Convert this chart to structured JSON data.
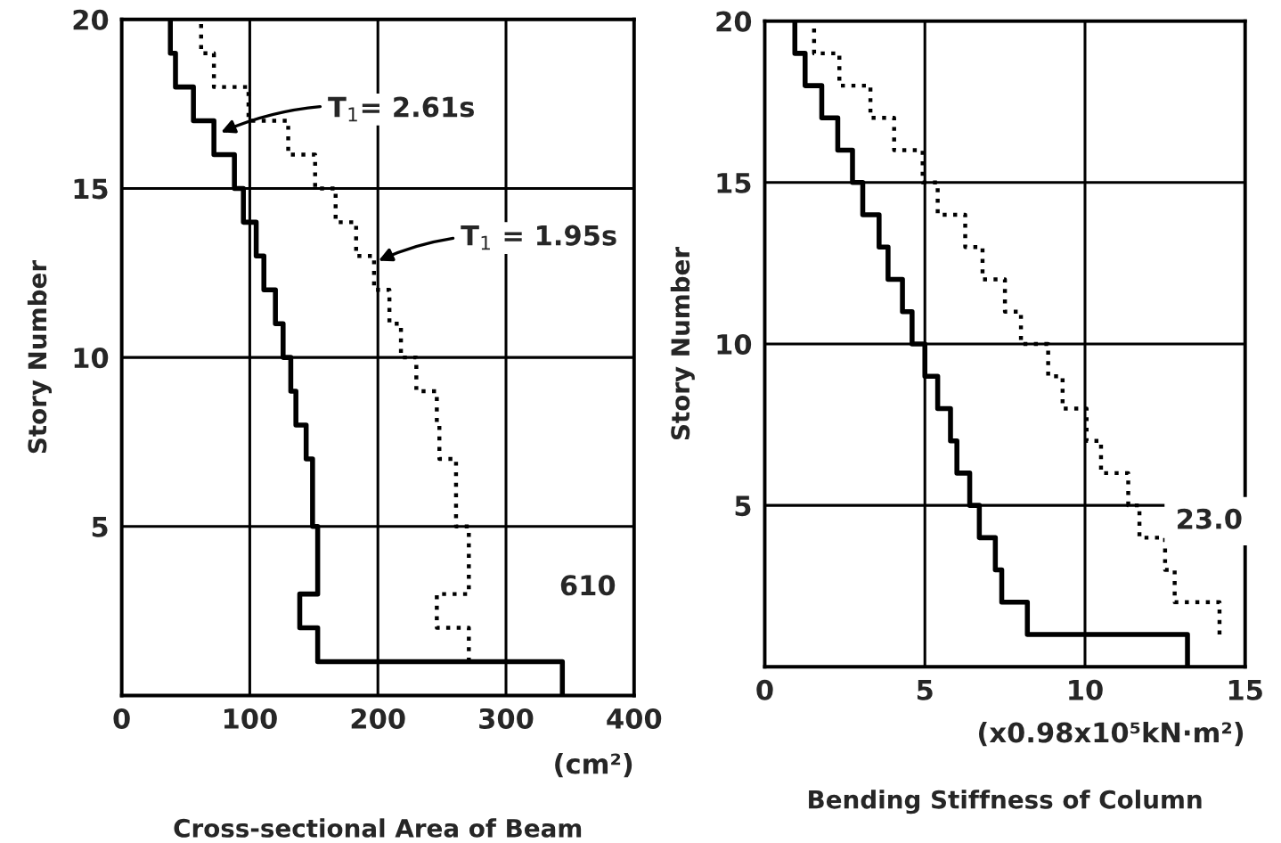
{
  "chart_data": [
    {
      "type": "step",
      "orientation": "horizontal",
      "ylabel": "Story Number",
      "xlabel": "Cross-sectional Area of Beam",
      "x": [
        0,
        1,
        2,
        3,
        4,
        5,
        6,
        7,
        8,
        9,
        10,
        11,
        12,
        13,
        14,
        15,
        16,
        17,
        18,
        19,
        20
      ],
      "series": [
        {
          "color": "#000000",
          "line_style": "solid",
          "values": [
            344,
            153,
            139,
            153,
            153,
            149,
            149,
            144,
            136,
            132,
            126,
            120,
            111,
            105,
            95,
            88,
            72,
            56,
            42,
            38,
            38
          ]
        },
        {
          "color": "#000000",
          "line_style": "dotted",
          "values": [
            null,
            271,
            246,
            271,
            271,
            261,
            261,
            248,
            246,
            230,
            218,
            209,
            197,
            183,
            167,
            151,
            130,
            99,
            72,
            62,
            62
          ]
        }
      ],
      "annotations": [
        {
          "text": "T$_{1}$= 2.61s",
          "x": 74,
          "y": 16.6
        },
        {
          "text": "T$_{1}$ = 1.95s",
          "x": 197,
          "y": 12.8
        },
        "610",
        "(cm²)"
      ],
      "xlim": [
        0,
        400
      ],
      "xticks": [
        0,
        100,
        200,
        300,
        400
      ],
      "ylim": [
        0,
        20
      ],
      "yticks": [
        5,
        10,
        15,
        20
      ],
      "grid": true
    },
    {
      "type": "step",
      "orientation": "horizontal",
      "ylabel": "Story Number",
      "xlabel": "Bending Stiffness of Column",
      "x": [
        0,
        1,
        2,
        3,
        4,
        5,
        6,
        7,
        8,
        9,
        10,
        11,
        12,
        13,
        14,
        15,
        16,
        17,
        18,
        19,
        20
      ],
      "series": [
        {
          "color": "#000000",
          "line_style": "solid",
          "values": [
            13.2,
            8.2,
            7.4,
            7.2,
            6.7,
            6.4,
            6.0,
            5.8,
            5.4,
            5.0,
            4.6,
            4.3,
            3.85,
            3.57,
            3.06,
            2.74,
            2.28,
            1.78,
            1.26,
            0.94,
            0.94
          ]
        },
        {
          "color": "#000000",
          "line_style": "dotted",
          "values": [
            null,
            14.2,
            12.8,
            12.5,
            11.7,
            11.35,
            10.5,
            10.05,
            9.3,
            8.85,
            8.0,
            7.5,
            6.8,
            6.26,
            5.4,
            4.93,
            4.04,
            3.3,
            2.33,
            1.54,
            1.54
          ]
        }
      ],
      "annotations": [
        "23.0",
        "(x0.98x10⁵kN·m²)"
      ],
      "xlim": [
        0,
        15
      ],
      "xticks": [
        0,
        5,
        10,
        15
      ],
      "ylim": [
        0,
        20
      ],
      "yticks": [
        5,
        10,
        15,
        20
      ],
      "grid": true
    }
  ]
}
